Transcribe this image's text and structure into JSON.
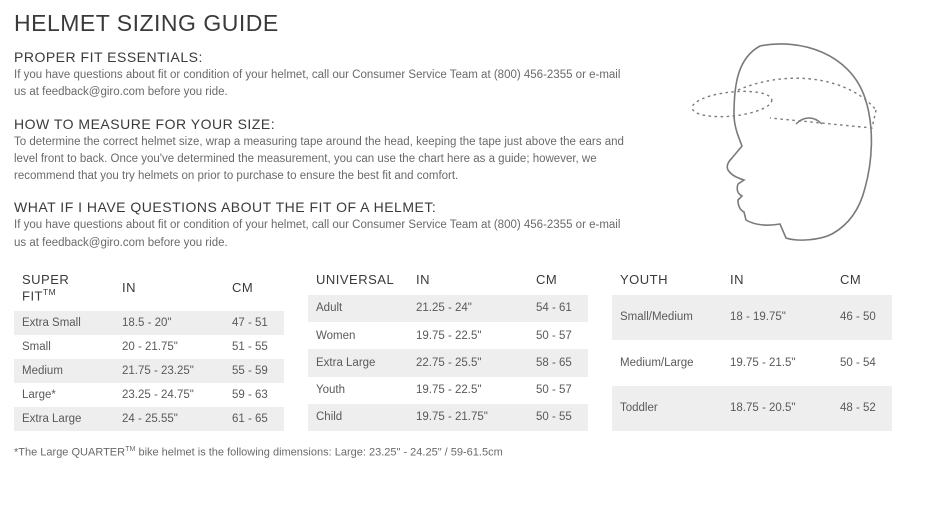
{
  "title": "HELMET SIZING GUIDE",
  "sections": [
    {
      "heading": "PROPER FIT ESSENTIALS:",
      "body": "If you have questions about fit or condition of your helmet, call our Consumer Service Team at (800) 456-2355 or e-mail us at feedback@giro.com before you ride."
    },
    {
      "heading": "HOW TO MEASURE FOR YOUR SIZE:",
      "body": "To determine the correct helmet size, wrap a measuring tape around the head, keeping the tape just above the ears and level front to back. Once you've determined the measurement, you can use the chart here as a guide; however, we recommend that you try helmets on prior to purchase to ensure the best fit and comfort."
    },
    {
      "heading": "WHAT IF I HAVE QUESTIONS ABOUT THE FIT OF A HELMET:",
      "body": "If you have questions about fit or condition of your helmet, call our Consumer Service Team at (800) 456-2355 or e-mail us at feedback@giro.com before you ride."
    }
  ],
  "tables": {
    "superfit": {
      "headers": [
        "SUPER FIT",
        "IN",
        "CM"
      ],
      "rows": [
        [
          "Extra Small",
          "18.5 - 20\"",
          "47 - 51"
        ],
        [
          "Small",
          "20 - 21.75\"",
          "51 - 55"
        ],
        [
          "Medium",
          "21.75 - 23.25\"",
          "55 - 59"
        ],
        [
          "Large*",
          "23.25 - 24.75\"",
          "59 - 63"
        ],
        [
          "Extra Large",
          "24 - 25.55\"",
          "61 - 65"
        ]
      ]
    },
    "universal": {
      "headers": [
        "UNIVERSAL",
        "IN",
        "CM"
      ],
      "rows": [
        [
          "Adult",
          "21.25 - 24\"",
          "54 - 61"
        ],
        [
          "Women",
          "19.75 - 22.5\"",
          "50 - 57"
        ],
        [
          "Extra Large",
          "22.75 - 25.5\"",
          "58 - 65"
        ],
        [
          "Youth",
          "19.75 - 22.5\"",
          "50 - 57"
        ],
        [
          "Child",
          "19.75 - 21.75\"",
          "50 - 55"
        ]
      ]
    },
    "youth": {
      "headers": [
        "YOUTH",
        "IN",
        "CM"
      ],
      "rows": [
        [
          "Small/Medium",
          "18 - 19.75\"",
          "46 - 50"
        ],
        [
          "Medium/Large",
          "19.75 - 21.5\"",
          "50 - 54"
        ],
        [
          "Toddler",
          "18.75 - 20.5\"",
          "48 - 52"
        ]
      ]
    }
  },
  "footnote_prefix": "*The Large QUARTER",
  "footnote_suffix": " bike helmet is the following dimensions: Large: 23.25\" - 24.25\" / 59-61.5cm",
  "tm": "TM",
  "illustration": {
    "stroke": "#7a7a7a",
    "tape_stroke": "#7a7a7a"
  }
}
